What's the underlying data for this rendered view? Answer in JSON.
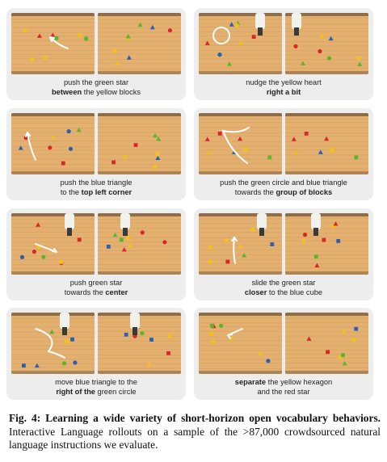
{
  "panels": [
    {
      "line1_pre": "push the green star",
      "line2_bold": "between",
      "line2_post": " the yellow blocks"
    },
    {
      "line1_pre": "nudge the yellow heart",
      "line2_bold": "right a bit",
      "line2_post": ""
    },
    {
      "line1_pre": "push the blue triangle",
      "line2_pre": "to the ",
      "line2_bold": "top left corner"
    },
    {
      "line1_pre": "push the green circle and blue triangle",
      "line2_pre": "towards the ",
      "line2_bold": "group of blocks"
    },
    {
      "line1_pre": "push green star",
      "line2_pre": "towards the ",
      "line2_bold": "center"
    },
    {
      "line1_pre": "slide the green star",
      "line2_bold": "closer",
      "line2_post": " to the blue cube"
    },
    {
      "line1_pre": "move blue triangle to the",
      "line2_bold": "right of the",
      "line2_post": " green circle"
    },
    {
      "line1_bold": "separate",
      "line1_post": " the yellow hexagon",
      "line2_pre": "and the red star"
    }
  ],
  "figure_caption": {
    "label": "Fig. 4:",
    "title": "Learning a wide variety of short-horizon open vocabulary behaviors.",
    "body": "Interactive Language rollouts on a sample of the >87,000 crowdsourced natural language instructions we evaluate."
  },
  "colors": {
    "board": "#e3b070",
    "grain": "#c98d4c",
    "edge": "#4a3b2c",
    "arrow": "#ffffff",
    "red": "#d8262b",
    "yellow": "#f2c21a",
    "green": "#57b62e",
    "blue": "#2b5fb3"
  }
}
